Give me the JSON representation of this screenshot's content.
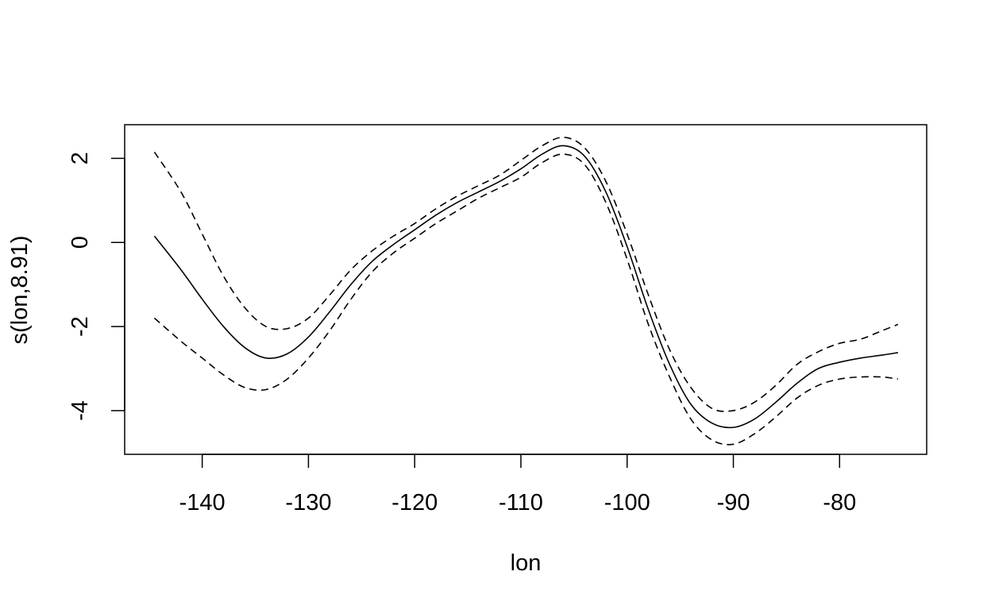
{
  "chart_data": {
    "type": "line",
    "title": "",
    "xlabel": "lon",
    "ylabel": "s(lon,8.91)",
    "xlim": [
      -147.3,
      -71.8
    ],
    "ylim": [
      -5.04,
      2.8
    ],
    "grid": false,
    "legend": "none",
    "x_ticks": [
      -140,
      -130,
      -120,
      -110,
      -100,
      -90,
      -80
    ],
    "x_tick_labels": [
      "-140",
      "-130",
      "-120",
      "-110",
      "-100",
      "-90",
      "-80"
    ],
    "y_ticks": [
      -4,
      -2,
      0,
      2
    ],
    "y_tick_labels": [
      "-4",
      "-2",
      "0",
      "2"
    ],
    "x": [
      -144.5,
      -142,
      -140,
      -138,
      -136,
      -134,
      -132,
      -130,
      -128,
      -126,
      -124,
      -122,
      -120,
      -118,
      -116,
      -114,
      -112,
      -110,
      -108,
      -106,
      -104,
      -102,
      -100,
      -98,
      -96,
      -94,
      -92,
      -90,
      -88,
      -86,
      -84,
      -82,
      -80,
      -78,
      -76,
      -74.5
    ],
    "series": [
      {
        "style": "solid",
        "values": [
          0.15,
          -0.65,
          -1.35,
          -2.0,
          -2.5,
          -2.75,
          -2.65,
          -2.25,
          -1.65,
          -1.0,
          -0.45,
          -0.05,
          0.3,
          0.65,
          0.95,
          1.2,
          1.45,
          1.75,
          2.1,
          2.3,
          2.05,
          1.2,
          -0.1,
          -1.6,
          -2.9,
          -3.85,
          -4.3,
          -4.4,
          -4.2,
          -3.8,
          -3.35,
          -3.0,
          -2.85,
          -2.75,
          -2.68,
          -2.62
        ]
      },
      {
        "style": "dashed",
        "values": [
          2.15,
          1.2,
          0.2,
          -0.8,
          -1.55,
          -2.0,
          -2.05,
          -1.8,
          -1.25,
          -0.65,
          -0.2,
          0.15,
          0.45,
          0.8,
          1.1,
          1.35,
          1.6,
          1.95,
          2.3,
          2.5,
          2.25,
          1.45,
          0.2,
          -1.25,
          -2.55,
          -3.45,
          -3.95,
          -4.0,
          -3.8,
          -3.4,
          -2.9,
          -2.6,
          -2.4,
          -2.3,
          -2.1,
          -1.95
        ]
      },
      {
        "style": "dashed",
        "values": [
          -1.8,
          -2.35,
          -2.75,
          -3.15,
          -3.45,
          -3.5,
          -3.25,
          -2.75,
          -2.1,
          -1.35,
          -0.7,
          -0.25,
          0.1,
          0.45,
          0.75,
          1.05,
          1.3,
          1.55,
          1.9,
          2.1,
          1.85,
          0.95,
          -0.4,
          -1.95,
          -3.2,
          -4.2,
          -4.7,
          -4.8,
          -4.55,
          -4.15,
          -3.7,
          -3.4,
          -3.25,
          -3.2,
          -3.2,
          -3.25
        ]
      }
    ]
  }
}
